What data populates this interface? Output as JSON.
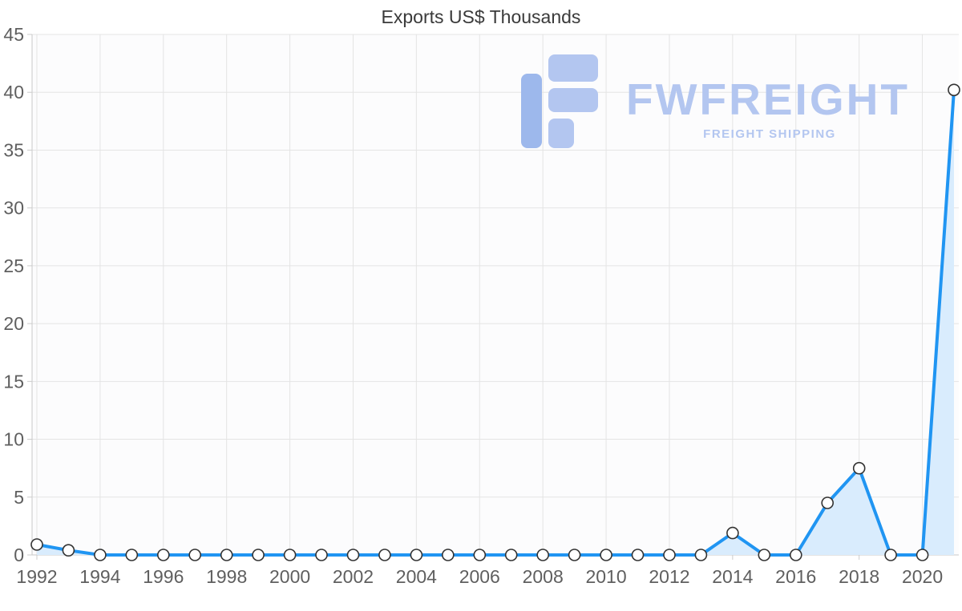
{
  "watermark": {
    "name": "FWFREIGHT",
    "tagline": "FREIGHT SHIPPING"
  },
  "chart_data": {
    "type": "area",
    "title": "Exports US$ Thousands",
    "xlabel": "",
    "ylabel": "",
    "x": [
      1992,
      1993,
      1994,
      1995,
      1996,
      1997,
      1998,
      1999,
      2000,
      2001,
      2002,
      2003,
      2004,
      2005,
      2006,
      2007,
      2008,
      2009,
      2010,
      2011,
      2012,
      2013,
      2014,
      2015,
      2016,
      2017,
      2018,
      2019,
      2020,
      2021
    ],
    "values": [
      0.9,
      0.4,
      0,
      0,
      0,
      0,
      0,
      0,
      0,
      0,
      0,
      0,
      0,
      0,
      0,
      0,
      0,
      0,
      0,
      0,
      0,
      0,
      1.9,
      0,
      0,
      4.5,
      7.5,
      0,
      0,
      40.2
    ],
    "ylim": [
      0,
      45
    ],
    "yticks": [
      0,
      5,
      10,
      15,
      20,
      25,
      30,
      35,
      40,
      45
    ],
    "xticks": [
      1992,
      1994,
      1996,
      1998,
      2000,
      2002,
      2004,
      2006,
      2008,
      2010,
      2012,
      2014,
      2016,
      2018,
      2020
    ],
    "grid": true,
    "legend": "none",
    "colors": {
      "line": "#2095f2",
      "fill": "#d9ecfd",
      "marker_fill": "#ffffff",
      "marker_stroke": "#333333",
      "grid": "#e4e4e4",
      "axis_line": "#c9c9c9",
      "tick": "#cccccc",
      "axis_text": "#5f5f5f",
      "title_text": "#3a3a3a",
      "plot_bg": "#fcfcfd",
      "watermark": "#b3c6f0",
      "watermark_dark": "#9db8ec"
    }
  }
}
